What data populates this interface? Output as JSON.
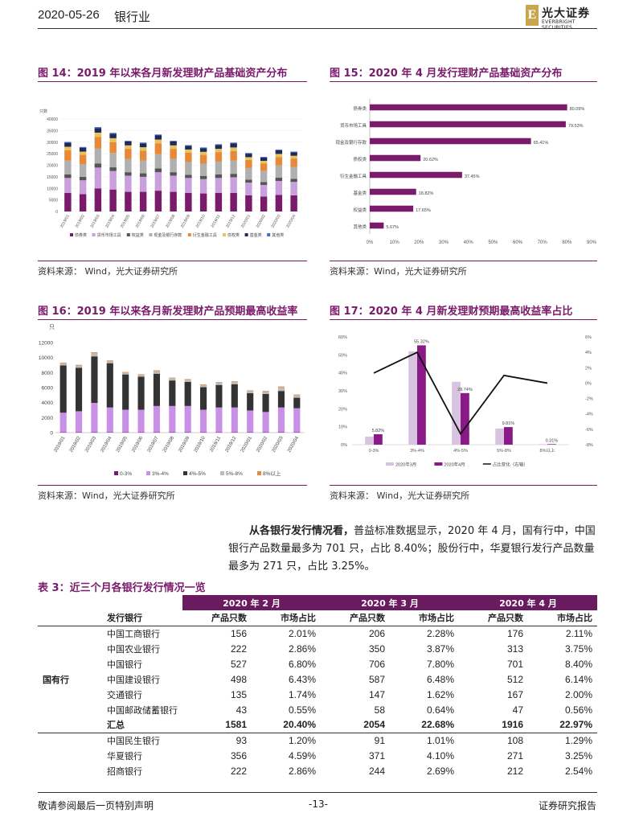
{
  "header": {
    "date": "2020-05-26",
    "section": "银行业",
    "logo_mark": "E",
    "logo_text": "光大证券",
    "logo_sub": "EVERBRIGHT SECURITIES"
  },
  "fig14": {
    "title": "图 14：2019 年以来各月新发理财产品基础资产分布",
    "source": "资料来源： Wind，光大证券研究所",
    "chart_data": {
      "type": "bar",
      "stacked": true,
      "ylabel": "只数",
      "ylim": [
        0,
        40000
      ],
      "yticks": [
        "0",
        "5000",
        "10000",
        "15000",
        "20000",
        "25000",
        "30000",
        "35000",
        "40000"
      ],
      "categories": [
        "2019/01",
        "2019/02",
        "2019/03",
        "2019/04",
        "2019/05",
        "2019/06",
        "2019/07",
        "2019/08",
        "2019/09",
        "2019/10",
        "2019/11",
        "2019/12",
        "2020/01",
        "2020/02",
        "2020/03",
        "2020/04"
      ],
      "series": [
        {
          "name": "债券类",
          "color": "#7a1a6a",
          "values": [
            8000,
            7500,
            10000,
            9500,
            8500,
            8500,
            9000,
            8500,
            8000,
            7800,
            8000,
            8000,
            7000,
            6500,
            7200,
            7000
          ]
        },
        {
          "name": "货币市场工具",
          "color": "#c9a0dc",
          "values": [
            6500,
            6000,
            9000,
            8000,
            7000,
            6500,
            8000,
            7000,
            6500,
            6200,
            6500,
            6800,
            5500,
            5000,
            6000,
            5800
          ]
        },
        {
          "name": "权益类",
          "color": "#555555",
          "values": [
            1500,
            1500,
            1800,
            1600,
            1500,
            1500,
            1600,
            1500,
            1400,
            1400,
            1500,
            1500,
            1300,
            1200,
            1400,
            1300
          ]
        },
        {
          "name": "现金及银行存款",
          "color": "#b0b0b0",
          "values": [
            6000,
            5500,
            6500,
            6200,
            5800,
            5600,
            6200,
            5800,
            5500,
            5300,
            5600,
            5700,
            5000,
            4800,
            5300,
            5200
          ]
        },
        {
          "name": "衍生金融工具",
          "color": "#e8893a",
          "values": [
            4500,
            4000,
            5000,
            4700,
            4300,
            4200,
            4700,
            4300,
            4000,
            3800,
            4100,
            4200,
            3500,
            3300,
            3700,
            3600
          ]
        },
        {
          "name": "债权类",
          "color": "#e8c25a",
          "values": [
            1500,
            1400,
            1800,
            1700,
            1500,
            1500,
            1600,
            1500,
            1400,
            1300,
            1400,
            1500,
            1200,
            1100,
            1300,
            1200
          ]
        },
        {
          "name": "基金类",
          "color": "#1e2a5a",
          "values": [
            1800,
            1700,
            2000,
            1900,
            1700,
            1700,
            1900,
            1700,
            1600,
            1600,
            1700,
            1800,
            1500,
            1400,
            1600,
            1500
          ]
        },
        {
          "name": "其他类",
          "color": "#4a6cc0",
          "values": [
            300,
            300,
            400,
            400,
            300,
            300,
            300,
            300,
            300,
            300,
            300,
            300,
            300,
            300,
            300,
            300
          ]
        }
      ]
    }
  },
  "fig15": {
    "title": "图 15：2020 年 4 月发行理财产品基础资产分布",
    "source": "资料来源：Wind，光大证券研究所",
    "chart_data": {
      "type": "bar",
      "orientation": "horizontal",
      "xlim": [
        0,
        90
      ],
      "xticks": [
        "0%",
        "10%",
        "20%",
        "30%",
        "40%",
        "50%",
        "60%",
        "70%",
        "80%",
        "90%"
      ],
      "categories": [
        "债券类",
        "货币市场工具",
        "现金及银行存款",
        "债权类",
        "衍生金融工具",
        "基金类",
        "权益类",
        "其他类"
      ],
      "values": [
        80.09,
        79.53,
        65.41,
        20.62,
        37.45,
        18.82,
        17.65,
        5.67
      ],
      "labels": [
        "80.09%",
        "79.53%",
        "65.41%",
        "20.62%",
        "37.45%",
        "18.82%",
        "17.65%",
        "5.67%"
      ],
      "color": "#7a1a6a"
    }
  },
  "fig16": {
    "title": "图 16：2019 年以来各月新发理财产品预期最高收益率",
    "source": "资料来源：Wind，光大证券研究所",
    "chart_data": {
      "type": "bar",
      "stacked": true,
      "ylabel": "只",
      "ylim": [
        0,
        12000
      ],
      "yticks": [
        "0",
        "2000",
        "4000",
        "6000",
        "8000",
        "10000",
        "12000"
      ],
      "categories": [
        "2019/01",
        "2019/02",
        "2019/03",
        "2019/04",
        "2019/05",
        "2019/06",
        "2019/07",
        "2019/08",
        "2019/09",
        "2019/10",
        "2019/11",
        "2019/12",
        "2020/01",
        "2020/02",
        "2020/03",
        "2020/04"
      ],
      "series": [
        {
          "name": "0-3%",
          "color": "#7a1a6a",
          "values": [
            50,
            50,
            60,
            50,
            50,
            50,
            50,
            50,
            50,
            50,
            50,
            50,
            50,
            50,
            50,
            50
          ]
        },
        {
          "name": "3%-4%",
          "color": "#c990e8",
          "values": [
            2600,
            2800,
            3900,
            3300,
            3000,
            3000,
            3500,
            3500,
            3500,
            3000,
            3300,
            3300,
            2900,
            2700,
            3300,
            3200
          ]
        },
        {
          "name": "4%-5%",
          "color": "#333333",
          "values": [
            6300,
            5800,
            6200,
            5900,
            4700,
            4400,
            4300,
            3400,
            3200,
            3000,
            3000,
            3100,
            2300,
            2400,
            2200,
            1400
          ]
        },
        {
          "name": "5%-8%",
          "color": "#bbbbbb",
          "values": [
            300,
            300,
            450,
            300,
            250,
            250,
            350,
            300,
            300,
            300,
            300,
            300,
            300,
            350,
            500,
            350
          ]
        },
        {
          "name": "8%以上",
          "color": "#e8893a",
          "values": [
            80,
            80,
            100,
            80,
            80,
            80,
            100,
            80,
            80,
            80,
            80,
            80,
            80,
            80,
            100,
            80
          ]
        }
      ]
    }
  },
  "fig17": {
    "title": "图 17：2020 年 4 月新发理财预期最高收益率占比",
    "source": "资料来源： Wind，光大证券研究所",
    "chart_data": {
      "type": "bar",
      "categories": [
        "0-3%",
        "3%-4%",
        "4%-5%",
        "5%-8%",
        "8%以上"
      ],
      "y_left_ticks": [
        "0%",
        "10%",
        "20%",
        "30%",
        "40%",
        "50%",
        "60%"
      ],
      "y_right_ticks": [
        "6%",
        "4%",
        "2%",
        "0%",
        "-2%",
        "-4%",
        "-6%",
        "-8%"
      ],
      "ylim_left": [
        0,
        60
      ],
      "ylim_right": [
        -8,
        6
      ],
      "series": [
        {
          "name": "2020年3月",
          "color": "#d8c4e0",
          "values": [
            4.5,
            52,
            35,
            9,
            0.3
          ]
        },
        {
          "name": "2020年4月",
          "color": "#8a1a88",
          "values": [
            5.82,
            55.32,
            28.74,
            9.81,
            0.31
          ],
          "labels": [
            "5.82%",
            "55.32%",
            "28.74%",
            "9.81%",
            "0.31%"
          ]
        },
        {
          "name": "占比变化（右轴）",
          "color": "#111111",
          "type": "line",
          "values": [
            1.3,
            4.0,
            -6.6,
            1.0,
            0.0
          ]
        }
      ]
    }
  },
  "para": {
    "lead": "从各银行发行情况看，",
    "text": "普益标准数据显示，2020 年 4 月，国有行中，中国银行产品数量最多为 701 只，占比 8.40%；股份行中，华夏银行发行产品数量最多为 271 只，占比 3.25%。"
  },
  "table3": {
    "title": "表 3：近三个月各银行发行情况一览",
    "months": [
      "2020 年 2 月",
      "2020 年 3 月",
      "2020 年 4 月"
    ],
    "col_bank": "发行银行",
    "col_count": "产品只数",
    "col_share": "市场占比",
    "group": "国有行",
    "rows": [
      {
        "bank": "中国工商银行",
        "v": [
          "156",
          "2.01%",
          "206",
          "2.28%",
          "176",
          "2.11%"
        ]
      },
      {
        "bank": "中国农业银行",
        "v": [
          "222",
          "2.86%",
          "350",
          "3.87%",
          "313",
          "3.75%"
        ]
      },
      {
        "bank": "中国银行",
        "v": [
          "527",
          "6.80%",
          "706",
          "7.80%",
          "701",
          "8.40%"
        ]
      },
      {
        "bank": "中国建设银行",
        "v": [
          "498",
          "6.43%",
          "587",
          "6.48%",
          "512",
          "6.14%"
        ]
      },
      {
        "bank": "交通银行",
        "v": [
          "135",
          "1.74%",
          "147",
          "1.62%",
          "167",
          "2.00%"
        ]
      },
      {
        "bank": "中国邮政储蓄银行",
        "v": [
          "43",
          "0.55%",
          "58",
          "0.64%",
          "47",
          "0.56%"
        ]
      }
    ],
    "total": {
      "bank": "汇总",
      "v": [
        "1581",
        "20.40%",
        "2054",
        "22.68%",
        "1916",
        "22.97%"
      ]
    },
    "rows2": [
      {
        "bank": "中国民生银行",
        "v": [
          "93",
          "1.20%",
          "91",
          "1.01%",
          "108",
          "1.29%"
        ]
      },
      {
        "bank": "华夏银行",
        "v": [
          "356",
          "4.59%",
          "371",
          "4.10%",
          "271",
          "3.25%"
        ]
      },
      {
        "bank": "招商银行",
        "v": [
          "222",
          "2.86%",
          "244",
          "2.69%",
          "212",
          "2.54%"
        ]
      }
    ]
  },
  "footer": {
    "left": "敬请参阅最后一页特别声明",
    "center": "-13-",
    "right": "证券研究报告"
  }
}
